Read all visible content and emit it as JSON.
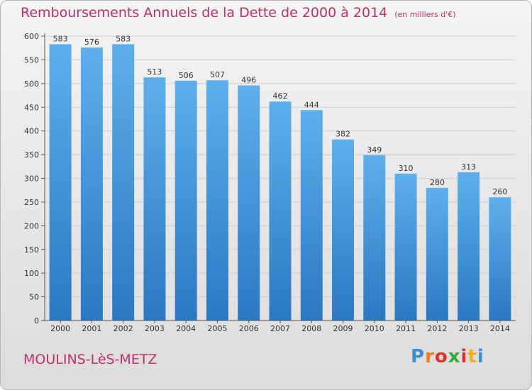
{
  "title": "Remboursements Annuels de la Dette de 2000 à 2014",
  "unit": "(en milliers d'€)",
  "commune": "MOULINS-LèS-METZ",
  "logo": {
    "letters": [
      "P",
      "r",
      "o",
      "x",
      "i",
      "t",
      "i"
    ],
    "colors": [
      "#3a8fd6",
      "#f07d1a",
      "#e0342a",
      "#3aa93a",
      "#e0342a",
      "#f2b01e",
      "#3a8fd6"
    ]
  },
  "colors": {
    "bar_top": "#5db0ec",
    "bar_bottom": "#2a78c2",
    "title": "#c0306a",
    "grid": "#cfcfcf"
  },
  "chart_data": {
    "type": "bar",
    "categories": [
      "2000",
      "2001",
      "2002",
      "2003",
      "2004",
      "2005",
      "2006",
      "2007",
      "2008",
      "2009",
      "2010",
      "2011",
      "2012",
      "2013",
      "2014"
    ],
    "values": [
      583,
      576,
      583,
      513,
      506,
      507,
      496,
      462,
      444,
      382,
      349,
      310,
      280,
      313,
      260
    ],
    "ylim": [
      0,
      600
    ],
    "yticks": [
      0,
      50,
      100,
      150,
      200,
      250,
      300,
      350,
      400,
      450,
      500,
      550,
      600
    ],
    "grid": true,
    "data_labels": true
  }
}
